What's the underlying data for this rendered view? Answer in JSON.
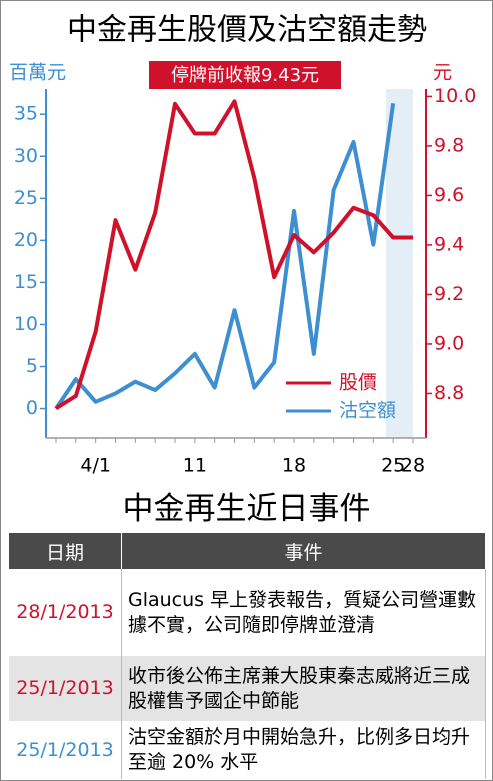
{
  "chart_data": {
    "type": "line",
    "title": "中金再生股價及沽空額走勢",
    "y_label": "百萬元",
    "y2_label": "元",
    "annotation": "停牌前收報9.43元",
    "categories": [
      null,
      null,
      "4/1",
      null,
      null,
      null,
      null,
      "11",
      null,
      null,
      null,
      null,
      "18",
      null,
      null,
      null,
      null,
      "25",
      "28"
    ],
    "series": [
      {
        "name": "股價",
        "color": "#d0112b",
        "axis": "y2",
        "values": [
          8.74,
          8.79,
          9.05,
          9.5,
          9.3,
          9.53,
          9.97,
          9.85,
          9.85,
          9.98,
          9.67,
          9.27,
          9.44,
          9.37,
          9.45,
          9.55,
          9.52,
          9.43,
          9.43
        ]
      },
      {
        "name": "沽空額",
        "color": "#3d8fd1",
        "values": [
          0,
          3.5,
          0.8,
          1.8,
          3.2,
          2.2,
          4.2,
          6.5,
          2.5,
          11.7,
          2.5,
          5.5,
          23.5,
          6.5,
          26,
          31.7,
          19.5,
          36.3,
          null
        ]
      }
    ],
    "ylim": [
      -3.5,
      38
    ],
    "yticks": [
      0,
      5,
      10,
      15,
      20,
      25,
      30,
      35
    ],
    "y2lim": [
      8.62,
      10.03
    ],
    "y2ticks": [
      8.8,
      {
        "value": 9,
        "label": "9.0"
      },
      9.2,
      9.4,
      9.6,
      9.8,
      {
        "value": 10,
        "label": "10.0"
      }
    ],
    "legend": "lower-right"
  },
  "events": {
    "title": "中金再生近日事件",
    "header": [
      "日期",
      "事件"
    ],
    "rows": [
      [
        "28/1/2013",
        "Glaucus 早上發表報告，質疑公司營運數據不實，公司隨即停牌並澄清"
      ],
      [
        "25/1/2013",
        "收市後公佈主席兼大股東秦志威將近三成股權售予國企中節能"
      ],
      [
        "25/1/2013",
        "沽空金額於月中開始急升，比例多日均升至逾 20% 水平"
      ]
    ]
  }
}
